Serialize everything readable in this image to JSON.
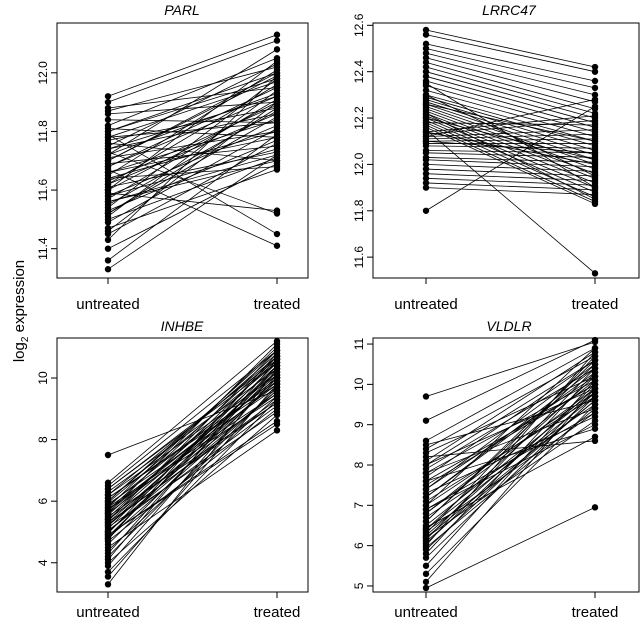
{
  "ylabel": {
    "base": "log",
    "sub": "2",
    "rest": " expression"
  },
  "chart_data": [
    {
      "type": "line",
      "title": "PARL",
      "categories": [
        "untreated",
        "treated"
      ],
      "ylim": [
        11.3,
        12.17
      ],
      "yticks": [
        11.4,
        11.6,
        11.8,
        12.0
      ],
      "yticklabels": [
        "11.4",
        "11.6",
        "11.8",
        "12.0"
      ],
      "untreated": [
        11.92,
        11.9,
        11.88,
        11.87,
        11.86,
        11.84,
        11.82,
        11.81,
        11.8,
        11.79,
        11.78,
        11.77,
        11.76,
        11.75,
        11.74,
        11.73,
        11.72,
        11.72,
        11.71,
        11.7,
        11.69,
        11.68,
        11.67,
        11.66,
        11.65,
        11.64,
        11.63,
        11.62,
        11.61,
        11.6,
        11.59,
        11.58,
        11.57,
        11.56,
        11.55,
        11.54,
        11.53,
        11.52,
        11.51,
        11.5,
        11.49,
        11.47,
        11.46,
        11.45,
        11.43,
        11.4,
        11.36,
        11.33,
        11.62,
        11.7,
        11.68,
        11.78,
        11.58,
        11.74,
        11.66,
        11.52,
        11.8,
        11.64,
        11.6,
        11.56
      ],
      "treated": [
        12.13,
        12.11,
        11.95,
        12.02,
        11.9,
        11.83,
        12.05,
        11.78,
        12.0,
        11.45,
        11.97,
        11.88,
        11.7,
        12.03,
        11.86,
        11.52,
        11.93,
        12.08,
        11.8,
        11.99,
        11.75,
        11.92,
        11.41,
        11.84,
        12.01,
        11.68,
        11.89,
        11.96,
        11.73,
        12.04,
        11.53,
        11.82,
        11.91,
        11.72,
        11.87,
        11.98,
        11.77,
        11.85,
        11.94,
        11.71,
        11.81,
        11.67,
        11.9,
        11.76,
        11.99,
        11.69,
        11.79,
        11.72,
        11.86,
        12.0,
        11.95,
        11.83,
        11.74,
        11.92,
        11.78,
        11.88,
        11.98,
        11.8,
        11.9,
        11.7
      ]
    },
    {
      "type": "line",
      "title": "LRRC47",
      "categories": [
        "untreated",
        "treated"
      ],
      "ylim": [
        11.51,
        12.61
      ],
      "yticks": [
        11.6,
        11.8,
        12.0,
        12.2,
        12.4,
        12.6
      ],
      "yticklabels": [
        "11.6",
        "11.8",
        "12.0",
        "12.2",
        "12.4",
        "12.6"
      ],
      "untreated": [
        12.58,
        12.56,
        12.52,
        12.5,
        12.48,
        12.46,
        12.44,
        12.42,
        12.4,
        12.38,
        12.36,
        12.34,
        12.32,
        12.3,
        12.29,
        12.28,
        12.27,
        12.26,
        12.25,
        12.24,
        12.23,
        12.22,
        12.21,
        12.2,
        12.19,
        12.18,
        12.17,
        12.16,
        12.15,
        12.14,
        12.13,
        12.12,
        12.11,
        12.1,
        12.09,
        12.08,
        12.06,
        12.05,
        12.03,
        12.02,
        12.0,
        11.98,
        11.96,
        11.94,
        11.92,
        11.9,
        11.8,
        12.22,
        12.18,
        12.14,
        12.3,
        12.26,
        12.1,
        12.35,
        12.12,
        12.2
      ],
      "treated": [
        12.42,
        12.4,
        12.36,
        12.33,
        12.3,
        12.27,
        12.24,
        12.22,
        12.2,
        12.18,
        12.16,
        12.14,
        12.12,
        12.1,
        12.08,
        12.06,
        12.04,
        12.02,
        12.0,
        11.98,
        11.96,
        11.94,
        11.92,
        11.9,
        11.88,
        11.86,
        11.84,
        11.83,
        11.53,
        12.21,
        12.19,
        12.15,
        12.13,
        12.11,
        12.09,
        12.07,
        12.05,
        12.03,
        12.01,
        11.99,
        11.97,
        11.95,
        11.93,
        11.91,
        11.89,
        11.87,
        12.25,
        11.85,
        12.17,
        12.0,
        11.95,
        12.1,
        12.05,
        11.9,
        12.28,
        12.02
      ]
    },
    {
      "type": "line",
      "title": "INHBE",
      "categories": [
        "untreated",
        "treated"
      ],
      "ylim": [
        3.05,
        11.3
      ],
      "yticks": [
        4,
        6,
        8,
        10
      ],
      "yticklabels": [
        "4",
        "6",
        "8",
        "10"
      ],
      "untreated": [
        7.5,
        6.6,
        6.5,
        6.4,
        6.3,
        6.2,
        6.1,
        6.0,
        5.95,
        5.9,
        5.85,
        5.8,
        5.75,
        5.7,
        5.65,
        5.6,
        5.55,
        5.5,
        5.45,
        5.4,
        5.35,
        5.3,
        5.25,
        5.2,
        5.15,
        5.1,
        5.05,
        5.0,
        4.95,
        4.9,
        4.85,
        4.8,
        4.75,
        4.7,
        4.6,
        4.5,
        4.4,
        4.3,
        4.2,
        4.1,
        4.0,
        3.9,
        3.7,
        3.55,
        3.3,
        5.6,
        5.8,
        6.0,
        5.2,
        5.4,
        4.9,
        6.2,
        5.0,
        5.7,
        6.4,
        5.3,
        4.8,
        6.1
      ],
      "treated": [
        9.6,
        11.2,
        10.9,
        10.6,
        10.3,
        10.1,
        9.9,
        10.8,
        10.5,
        9.7,
        10.2,
        11.0,
        9.4,
        10.7,
        10.0,
        9.8,
        10.4,
        9.2,
        10.6,
        9.5,
        10.9,
        10.1,
        9.3,
        10.3,
        8.9,
        10.5,
        9.1,
        9.9,
        10.7,
        8.6,
        10.2,
        9.6,
        10.8,
        9.0,
        10.0,
        8.3,
        9.4,
        10.4,
        9.7,
        10.6,
        8.8,
        10.1,
        9.3,
        9.8,
        10.3,
        11.1,
        9.5,
        10.9,
        9.9,
        10.2,
        8.5,
        10.7,
        9.6,
        10.0,
        10.5,
        9.2,
        10.4,
        9.8
      ]
    },
    {
      "type": "line",
      "title": "VLDLR",
      "categories": [
        "untreated",
        "treated"
      ],
      "ylim": [
        4.85,
        11.15
      ],
      "yticks": [
        5,
        6,
        7,
        8,
        9,
        10,
        11
      ],
      "yticklabels": [
        "5",
        "6",
        "7",
        "8",
        "9",
        "10",
        "11"
      ],
      "untreated": [
        9.7,
        9.1,
        8.6,
        8.5,
        8.4,
        8.3,
        8.2,
        8.1,
        8.0,
        7.9,
        7.8,
        7.7,
        7.6,
        7.5,
        7.4,
        7.3,
        7.2,
        7.1,
        7.0,
        6.9,
        6.8,
        6.7,
        6.6,
        6.5,
        6.45,
        6.4,
        6.35,
        6.3,
        6.25,
        6.2,
        6.15,
        6.1,
        6.05,
        6.0,
        5.95,
        5.9,
        5.8,
        5.7,
        5.5,
        5.3,
        5.1,
        4.95,
        6.6,
        7.0,
        7.4,
        6.2,
        8.0,
        7.6,
        6.9,
        7.2,
        6.4,
        7.8,
        6.8
      ],
      "treated": [
        11.05,
        11.1,
        10.9,
        9.6,
        10.7,
        10.2,
        8.6,
        10.8,
        9.9,
        10.4,
        9.4,
        10.6,
        8.9,
        10.0,
        10.5,
        9.2,
        10.3,
        9.7,
        10.9,
        9.0,
        10.1,
        9.5,
        10.6,
        9.8,
        8.7,
        10.2,
        9.3,
        10.7,
        9.9,
        9.1,
        10.4,
        9.6,
        10.0,
        10.8,
        9.4,
        9.8,
        10.3,
        9.7,
        10.1,
        9.5,
        9.9,
        6.95,
        10.5,
        9.8,
        10.2,
        9.6,
        10.6,
        10.0,
        9.3,
        10.4,
        9.7,
        10.1,
        9.9
      ]
    }
  ]
}
